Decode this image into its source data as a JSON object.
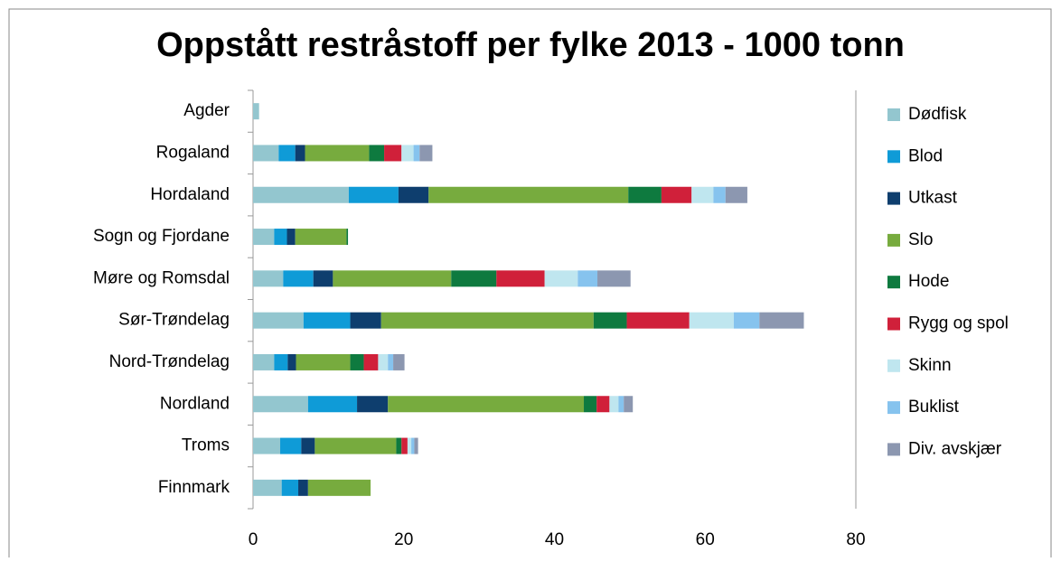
{
  "chart_data": {
    "type": "stacked-bar-horizontal",
    "title": "Oppstått restråstoff per fylke 2013 - 1000 tonn",
    "categories": [
      "Agder",
      "Rogaland",
      "Hordaland",
      "Sogn og Fjordane",
      "Møre og Romsdal",
      "Sør-Trøndelag",
      "Nord-Trøndelag",
      "Nordland",
      "Troms",
      "Finnmark"
    ],
    "series": [
      {
        "name": "Dødfisk",
        "color": "#93c6cf",
        "values": [
          0.8,
          3.4,
          12.7,
          2.8,
          4.0,
          6.7,
          2.8,
          7.3,
          3.6,
          3.8
        ]
      },
      {
        "name": "Blod",
        "color": "#0f9bd7",
        "values": [
          0,
          2.2,
          6.6,
          1.7,
          4.0,
          6.2,
          1.8,
          6.5,
          2.8,
          2.2
        ]
      },
      {
        "name": "Utkast",
        "color": "#0e3e6e",
        "values": [
          0,
          1.3,
          4.0,
          1.1,
          2.6,
          4.1,
          1.1,
          4.1,
          1.8,
          1.3
        ]
      },
      {
        "name": "Slo",
        "color": "#77ab3e",
        "values": [
          0,
          8.5,
          26.5,
          6.8,
          15.7,
          28.2,
          7.2,
          26.0,
          10.8,
          8.3
        ]
      },
      {
        "name": "Hode",
        "color": "#0e7a3f",
        "values": [
          0,
          2.0,
          4.4,
          0.2,
          6.0,
          4.4,
          1.8,
          1.7,
          0.7,
          0
        ]
      },
      {
        "name": "Rygg og spol",
        "color": "#d0203a",
        "values": [
          0,
          2.3,
          4.0,
          0,
          6.4,
          8.3,
          1.9,
          1.7,
          0.8,
          0
        ]
      },
      {
        "name": "Skinn",
        "color": "#bfe6ef",
        "values": [
          0,
          1.6,
          2.9,
          0,
          4.4,
          5.9,
          1.3,
          1.2,
          0.5,
          0
        ]
      },
      {
        "name": "Buklist",
        "color": "#86c3ee",
        "values": [
          0,
          0.8,
          1.6,
          0,
          2.6,
          3.4,
          0.7,
          0.7,
          0.4,
          0
        ]
      },
      {
        "name": "Div. avskjær",
        "color": "#8c97b0",
        "values": [
          0,
          1.7,
          2.9,
          0,
          4.4,
          5.9,
          1.5,
          1.2,
          0.5,
          0
        ]
      }
    ],
    "xlim": [
      0,
      80
    ],
    "xticks": [
      0,
      20,
      40,
      60,
      80
    ],
    "legend": "right"
  }
}
